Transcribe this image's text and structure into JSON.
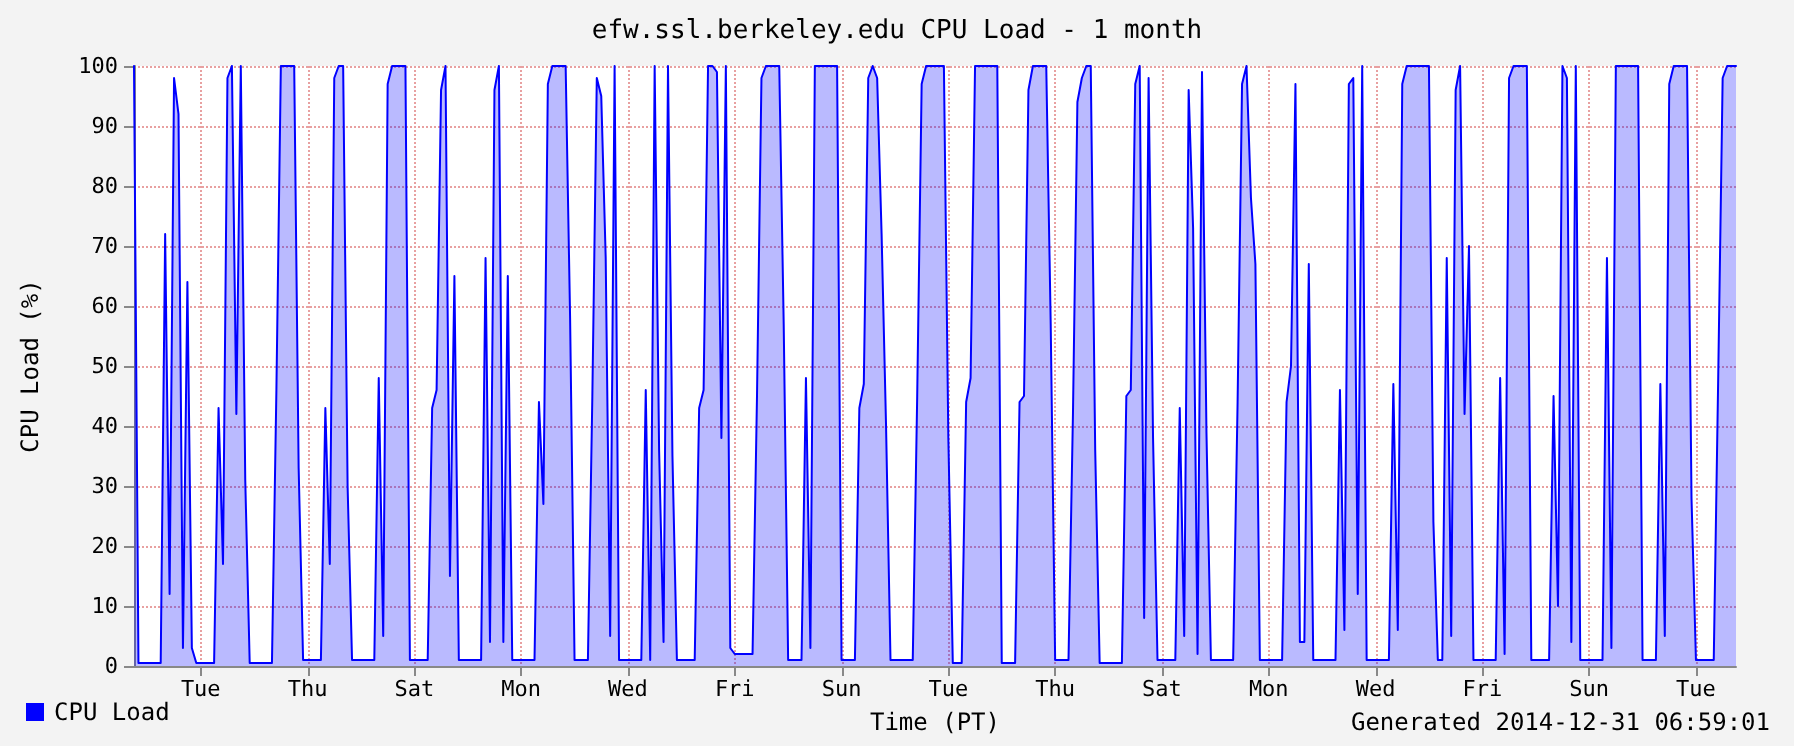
{
  "chart_data": {
    "type": "area",
    "title": "efw.ssl.berkeley.edu CPU Load - 1 month",
    "xlabel": "Time (PT)",
    "ylabel": "CPU Load (%)",
    "annotations": [
      "Generated 2014-12-31 06:59:01"
    ],
    "categories": [
      null,
      null,
      null,
      null,
      null,
      null,
      null,
      null,
      null,
      null,
      null,
      null,
      null,
      null,
      null,
      "Tue",
      null,
      null,
      null,
      null,
      null,
      null,
      null,
      null,
      null,
      null,
      null,
      null,
      null,
      null,
      null,
      null,
      null,
      null,
      null,
      null,
      null,
      null,
      null,
      "Thu",
      null,
      null,
      null,
      null,
      null,
      null,
      null,
      null,
      null,
      null,
      null,
      null,
      null,
      null,
      null,
      null,
      null,
      null,
      null,
      null,
      null,
      null,
      null,
      "Sat",
      null,
      null,
      null,
      null,
      null,
      null,
      null,
      null,
      null,
      null,
      null,
      null,
      null,
      null,
      null,
      null,
      null,
      null,
      null,
      null,
      null,
      null,
      null,
      "Mon",
      null,
      null,
      null,
      null,
      null,
      null,
      null,
      null,
      null,
      null,
      null,
      null,
      null,
      null,
      null,
      null,
      null,
      null,
      null,
      null,
      null,
      null,
      null,
      "Wed",
      null,
      null,
      null,
      null,
      null,
      null,
      null,
      null,
      null,
      null,
      null,
      null,
      null,
      null,
      null,
      null,
      null,
      null,
      null,
      null,
      null,
      null,
      null,
      "Fri",
      null,
      null,
      null,
      null,
      null,
      null,
      null,
      null,
      null,
      null,
      null,
      null,
      null,
      null,
      null,
      null,
      null,
      null,
      null,
      null,
      null,
      null,
      null,
      "Sun",
      null,
      null,
      null,
      null,
      null,
      null,
      null,
      null,
      null,
      null,
      null,
      null,
      null,
      null,
      null,
      null,
      null,
      null,
      null,
      null,
      null,
      null,
      null,
      "Tue",
      null,
      null,
      null,
      null,
      null,
      null,
      null,
      null,
      null,
      null,
      null,
      null,
      null,
      null,
      null,
      null,
      null,
      null,
      null,
      null,
      null,
      null,
      null,
      "Thu",
      null,
      null,
      null,
      null,
      null,
      null,
      null,
      null,
      null,
      null,
      null,
      null,
      null,
      null,
      null,
      null,
      null,
      null,
      null,
      null,
      null,
      null,
      null,
      "Sat",
      null,
      null,
      null,
      null,
      null,
      null,
      null,
      null,
      null,
      null,
      null,
      null,
      null,
      null,
      null,
      null,
      null,
      null,
      null,
      null,
      null,
      null,
      null,
      "Mon",
      null,
      null,
      null,
      null,
      null,
      null,
      null,
      null,
      null,
      null,
      null,
      null,
      null,
      null,
      null,
      null,
      null,
      null,
      null,
      null,
      null,
      null,
      null,
      "Wed",
      null,
      null,
      null,
      null,
      null,
      null,
      null,
      null,
      null,
      null,
      null,
      null,
      null,
      null,
      null,
      null,
      null,
      null,
      null,
      null,
      null,
      null,
      null,
      "Fri",
      null,
      null,
      null,
      null,
      null,
      null,
      null,
      null,
      null,
      null,
      null,
      null,
      null,
      null,
      null,
      null,
      null,
      null,
      null,
      null,
      null,
      null,
      null,
      "Sun",
      null,
      null,
      null,
      null,
      null,
      null,
      null,
      null,
      null,
      null,
      null,
      null,
      null,
      null,
      null,
      null,
      null,
      null,
      null,
      null,
      null,
      null,
      null,
      "Tue",
      null,
      null,
      null,
      null,
      null,
      null,
      null,
      null,
      null
    ],
    "ylim": [
      0,
      100
    ],
    "yticks": [
      0,
      10,
      20,
      30,
      40,
      50,
      60,
      70,
      80,
      90,
      100
    ],
    "grid": true,
    "legend": "bottom left",
    "marker": "none",
    "line_style": "solid",
    "series": [
      {
        "name": "CPU Load",
        "color": "#0000ff",
        "values": [
          100,
          0.5,
          0.5,
          0.5,
          0.5,
          0.5,
          0.5,
          72,
          12,
          98,
          92,
          3,
          64,
          3,
          0.5,
          0.5,
          0.5,
          0.5,
          0.5,
          43,
          17,
          98,
          100,
          42,
          100,
          31,
          0.5,
          0.5,
          0.5,
          0.5,
          0.5,
          0.5,
          46,
          100,
          100,
          100,
          100,
          33,
          1,
          1,
          1,
          1,
          1,
          43,
          17,
          98,
          100,
          100,
          30,
          1,
          1,
          1,
          1,
          1,
          1,
          48,
          5,
          97,
          100,
          100,
          100,
          100,
          1,
          1,
          1,
          1,
          1,
          43,
          46,
          96,
          100,
          15,
          65,
          1,
          1,
          1,
          1,
          1,
          1,
          68,
          4,
          96,
          100,
          4,
          65,
          1,
          1,
          1,
          1,
          1,
          1,
          44,
          27,
          97,
          100,
          100,
          100,
          100,
          58,
          1,
          1,
          1,
          1,
          45,
          98,
          95,
          68,
          5,
          100,
          1,
          1,
          1,
          1,
          1,
          1,
          46,
          1,
          100,
          36,
          4,
          100,
          35,
          1,
          1,
          1,
          1,
          1,
          43,
          46,
          100,
          100,
          99,
          38,
          100,
          3,
          2,
          2,
          2,
          2,
          2,
          45,
          98,
          100,
          100,
          100,
          100,
          57,
          1,
          1,
          1,
          1,
          48,
          3,
          100,
          100,
          100,
          100,
          100,
          100,
          1,
          1,
          1,
          1,
          43,
          47,
          98,
          100,
          98,
          72,
          40,
          1,
          1,
          1,
          1,
          1,
          1,
          45,
          97,
          100,
          100,
          100,
          100,
          100,
          38,
          0.5,
          0.5,
          0.5,
          44,
          48,
          100,
          100,
          100,
          100,
          100,
          100,
          0.5,
          0.5,
          0.5,
          0.5,
          44,
          45,
          96,
          100,
          100,
          100,
          100,
          57,
          1,
          1,
          1,
          1,
          42,
          94,
          98,
          100,
          100,
          36,
          0.5,
          0.5,
          0.5,
          0.5,
          0.5,
          0.5,
          45,
          46,
          97,
          100,
          8,
          98,
          38,
          1,
          1,
          1,
          1,
          1,
          43,
          5,
          96,
          73,
          2,
          99,
          39,
          1,
          1,
          1,
          1,
          1,
          1,
          44,
          97,
          100,
          78,
          67,
          1,
          1,
          1,
          1,
          1,
          1,
          44,
          50,
          97,
          4,
          4,
          67,
          1,
          1,
          1,
          1,
          1,
          1,
          46,
          6,
          97,
          98,
          12,
          100,
          1,
          1,
          1,
          1,
          1,
          1,
          47,
          6,
          97,
          100,
          100,
          100,
          100,
          100,
          100,
          24,
          1,
          1,
          68,
          5,
          96,
          100,
          42,
          70,
          1,
          1,
          1,
          1,
          1,
          1,
          48,
          2,
          98,
          100,
          100,
          100,
          100,
          1,
          1,
          1,
          1,
          1,
          45,
          10,
          100,
          98,
          4,
          100,
          1,
          1,
          1,
          1,
          1,
          1,
          68,
          3,
          100,
          100,
          100,
          100,
          100,
          100,
          1,
          1,
          1,
          1,
          47,
          5,
          97,
          100,
          100,
          100,
          100,
          28,
          1,
          1,
          1,
          1,
          1,
          48,
          98,
          100,
          100,
          100
        ]
      }
    ]
  }
}
